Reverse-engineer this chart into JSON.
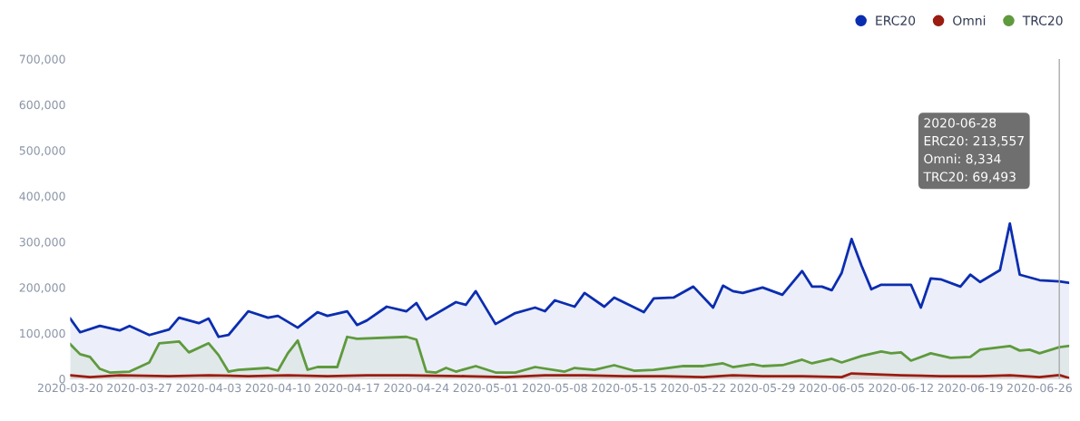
{
  "chart_data": {
    "type": "area",
    "xlim": [
      "2020-03-20",
      "2020-06-29"
    ],
    "xticks": [
      "2020-03-20",
      "2020-03-27",
      "2020-04-03",
      "2020-04-10",
      "2020-04-17",
      "2020-04-24",
      "2020-05-01",
      "2020-05-08",
      "2020-05-15",
      "2020-05-22",
      "2020-05-29",
      "2020-06-05",
      "2020-06-12",
      "2020-06-19",
      "2020-06-26"
    ],
    "ylim": [
      0,
      700000
    ],
    "yticks": [
      {
        "value": 0,
        "label": "0"
      },
      {
        "value": 100000,
        "label": "100,000"
      },
      {
        "value": 200000,
        "label": "200,000"
      },
      {
        "value": 300000,
        "label": "300,000"
      },
      {
        "value": 400000,
        "label": "400,000"
      },
      {
        "value": 500000,
        "label": "500,000"
      },
      {
        "value": 600000,
        "label": "600,000"
      },
      {
        "value": 700000,
        "label": "700,000"
      }
    ],
    "grid": false,
    "legend": "top right",
    "ref_lines": [
      {
        "axis": "x",
        "value": "2020-06-28",
        "color": "#aaaaaa"
      }
    ],
    "annotations": [
      "2020-06-28",
      "ERC20: 213,557",
      "Omni: 8,334",
      "TRC20: 69,493"
    ],
    "series": [
      {
        "name": "ERC20",
        "color": "#0b2db0",
        "x": [
          "2020-03-20",
          "2020-03-21",
          "2020-03-23",
          "2020-03-25",
          "2020-03-26",
          "2020-03-28",
          "2020-03-30",
          "2020-03-31",
          "2020-04-02",
          "2020-04-03",
          "2020-04-04",
          "2020-04-05",
          "2020-04-07",
          "2020-04-09",
          "2020-04-10",
          "2020-04-12",
          "2020-04-14",
          "2020-04-15",
          "2020-04-17",
          "2020-04-18",
          "2020-04-19",
          "2020-04-21",
          "2020-04-23",
          "2020-04-24",
          "2020-04-25",
          "2020-04-28",
          "2020-04-29",
          "2020-04-30",
          "2020-05-02",
          "2020-05-04",
          "2020-05-06",
          "2020-05-07",
          "2020-05-08",
          "2020-05-10",
          "2020-05-11",
          "2020-05-13",
          "2020-05-14",
          "2020-05-17",
          "2020-05-18",
          "2020-05-20",
          "2020-05-22",
          "2020-05-24",
          "2020-05-25",
          "2020-05-26",
          "2020-05-27",
          "2020-05-29",
          "2020-05-31",
          "2020-06-02",
          "2020-06-03",
          "2020-06-04",
          "2020-06-05",
          "2020-06-06",
          "2020-06-07",
          "2020-06-08",
          "2020-06-09",
          "2020-06-10",
          "2020-06-13",
          "2020-06-14",
          "2020-06-15",
          "2020-06-16",
          "2020-06-18",
          "2020-06-19",
          "2020-06-20",
          "2020-06-22",
          "2020-06-23",
          "2020-06-24",
          "2020-06-26",
          "2020-06-28",
          "2020-06-29"
        ],
        "values": [
          132000,
          102000,
          116000,
          106000,
          116000,
          96000,
          108000,
          134000,
          122000,
          132000,
          92000,
          96000,
          148000,
          134000,
          138000,
          112000,
          146000,
          138000,
          148000,
          118000,
          128000,
          158000,
          148000,
          166000,
          130000,
          168000,
          162000,
          192000,
          120000,
          144000,
          156000,
          148000,
          172000,
          158000,
          188000,
          158000,
          178000,
          146000,
          176000,
          178000,
          202000,
          156000,
          204000,
          192000,
          188000,
          200000,
          184000,
          236000,
          202000,
          202000,
          194000,
          232000,
          306000,
          248000,
          196000,
          206000,
          206000,
          156000,
          220000,
          218000,
          202000,
          228000,
          212000,
          238000,
          340000,
          228000,
          216000,
          213557,
          210000
        ]
      },
      {
        "name": "Omni",
        "color": "#9b1c10",
        "x": [
          "2020-03-20",
          "2020-03-22",
          "2020-03-25",
          "2020-03-30",
          "2020-04-03",
          "2020-04-07",
          "2020-04-11",
          "2020-04-15",
          "2020-04-19",
          "2020-04-23",
          "2020-04-29",
          "2020-05-03",
          "2020-05-07",
          "2020-05-11",
          "2020-05-15",
          "2020-05-19",
          "2020-05-23",
          "2020-05-26",
          "2020-05-29",
          "2020-06-02",
          "2020-06-06",
          "2020-06-07",
          "2020-06-12",
          "2020-06-16",
          "2020-06-20",
          "2020-06-23",
          "2020-06-26",
          "2020-06-28",
          "2020-06-29"
        ],
        "values": [
          8000,
          4000,
          8000,
          6000,
          8000,
          6000,
          8000,
          6000,
          8000,
          8000,
          6000,
          4000,
          8000,
          8000,
          6000,
          6000,
          4000,
          8000,
          6000,
          6000,
          4000,
          12000,
          8000,
          6000,
          6000,
          8000,
          4000,
          8334,
          2000
        ]
      },
      {
        "name": "TRC20",
        "color": "#5f9a3d",
        "x": [
          "2020-03-20",
          "2020-03-21",
          "2020-03-22",
          "2020-03-23",
          "2020-03-24",
          "2020-03-26",
          "2020-03-28",
          "2020-03-29",
          "2020-03-31",
          "2020-04-01",
          "2020-04-03",
          "2020-04-04",
          "2020-04-05",
          "2020-04-06",
          "2020-04-09",
          "2020-04-10",
          "2020-04-11",
          "2020-04-12",
          "2020-04-13",
          "2020-04-14",
          "2020-04-16",
          "2020-04-17",
          "2020-04-18",
          "2020-04-23",
          "2020-04-24",
          "2020-04-25",
          "2020-04-26",
          "2020-04-27",
          "2020-04-28",
          "2020-04-30",
          "2020-05-02",
          "2020-05-04",
          "2020-05-06",
          "2020-05-09",
          "2020-05-10",
          "2020-05-12",
          "2020-05-14",
          "2020-05-16",
          "2020-05-18",
          "2020-05-21",
          "2020-05-23",
          "2020-05-25",
          "2020-05-26",
          "2020-05-28",
          "2020-05-29",
          "2020-05-31",
          "2020-06-02",
          "2020-06-03",
          "2020-06-05",
          "2020-06-06",
          "2020-06-08",
          "2020-06-10",
          "2020-06-11",
          "2020-06-12",
          "2020-06-13",
          "2020-06-15",
          "2020-06-17",
          "2020-06-19",
          "2020-06-20",
          "2020-06-23",
          "2020-06-24",
          "2020-06-25",
          "2020-06-26",
          "2020-06-28",
          "2020-06-29"
        ],
        "values": [
          76000,
          54000,
          48000,
          22000,
          14000,
          16000,
          36000,
          78000,
          82000,
          58000,
          78000,
          52000,
          16000,
          20000,
          24000,
          18000,
          56000,
          84000,
          20000,
          26000,
          26000,
          92000,
          88000,
          92000,
          86000,
          16000,
          14000,
          24000,
          16000,
          28000,
          14000,
          14000,
          26000,
          16000,
          24000,
          20000,
          30000,
          18000,
          20000,
          28000,
          28000,
          34000,
          26000,
          32000,
          28000,
          30000,
          42000,
          34000,
          44000,
          36000,
          50000,
          60000,
          56000,
          58000,
          40000,
          56000,
          46000,
          48000,
          64000,
          72000,
          62000,
          64000,
          56000,
          69493,
          72000
        ]
      }
    ]
  }
}
